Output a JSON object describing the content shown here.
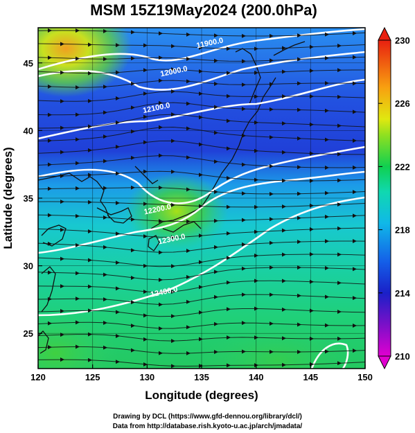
{
  "chart_data": {
    "type": "heatmap",
    "title": "MSM 15Z19May2024 (200.0hPa)",
    "xlabel": "Longitude (degrees)",
    "ylabel": "Latitude  (degrees)",
    "xlim": [
      120,
      150
    ],
    "ylim": [
      22.4,
      47.6
    ],
    "x_ticks": [
      120,
      125,
      130,
      135,
      140,
      145,
      150
    ],
    "y_ticks": [
      25,
      30,
      35,
      40,
      45
    ],
    "colorbar": {
      "range": [
        210,
        230
      ],
      "tick_values": [
        210,
        214,
        218,
        222,
        226,
        230
      ],
      "tick_labels": [
        "210",
        "214",
        "218",
        "222",
        "226",
        "230"
      ]
    },
    "contours": [
      {
        "label": "11900.0",
        "label_lon": 135.8,
        "label_lat": 46.3
      },
      {
        "label": "12000.0",
        "label_lon": 132.5,
        "label_lat": 44.2
      },
      {
        "label": "12100.0",
        "label_lon": 130.9,
        "label_lat": 41.5
      },
      {
        "label": "12200.0",
        "label_lon": 131.0,
        "label_lat": 34.0
      },
      {
        "label": "12300.0",
        "label_lon": 132.3,
        "label_lat": 31.8
      },
      {
        "label": "12400.0",
        "label_lon": 131.6,
        "label_lat": 27.9
      }
    ],
    "grid": true
  },
  "footer": {
    "line1": "Drawing by DCL (https://www.gfd-dennou.org/library/dcl/)",
    "line2": "Data from http://database.rish.kyoto-u.ac.jp/arch/jmadata/"
  }
}
